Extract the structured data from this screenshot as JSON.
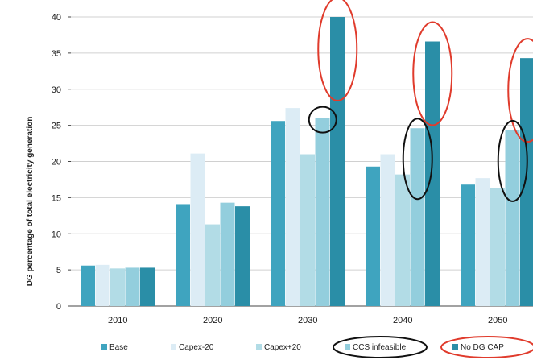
{
  "chart_data": {
    "type": "bar",
    "title": "",
    "xlabel": "",
    "ylabel": "DG percentage of total electricity generation",
    "ylim": [
      0,
      40
    ],
    "yticks": [
      0,
      5,
      10,
      15,
      20,
      25,
      30,
      35,
      40
    ],
    "categories": [
      "2010",
      "2020",
      "2030",
      "2040",
      "2050"
    ],
    "series": [
      {
        "name": "Base",
        "color": "#3fa4bf",
        "values": [
          5.6,
          14.1,
          25.6,
          19.3,
          16.8
        ]
      },
      {
        "name": "Capex-20",
        "color": "#dcecf5",
        "values": [
          5.7,
          21.1,
          27.4,
          21.0,
          17.7
        ]
      },
      {
        "name": "Capex+20",
        "color": "#b2dce6",
        "values": [
          5.2,
          11.3,
          21.0,
          18.2,
          16.3
        ]
      },
      {
        "name": "CCS infeasible",
        "color": "#93cedd",
        "values": [
          5.3,
          14.3,
          26.0,
          24.6,
          24.3
        ]
      },
      {
        "name": "No DG CAP",
        "color": "#2a8ea7",
        "values": [
          5.3,
          13.8,
          40.0,
          36.6,
          34.3
        ]
      }
    ],
    "legend_position": "bottom",
    "grid": true,
    "highlighted_legend_entries": [
      "CCS infeasible",
      "No DG CAP"
    ]
  }
}
